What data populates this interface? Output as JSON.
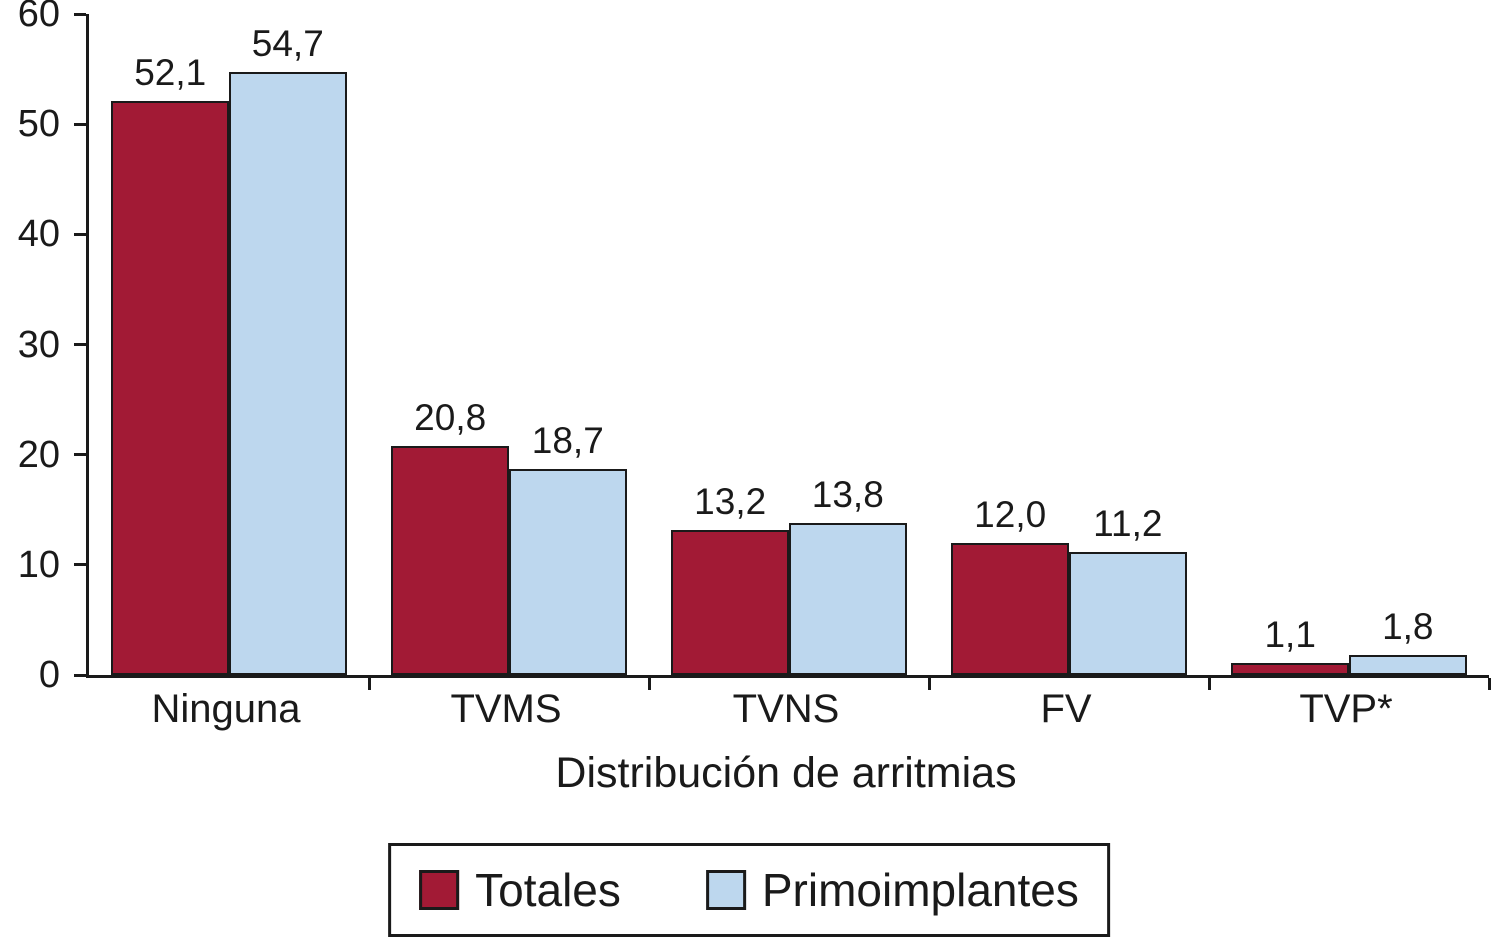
{
  "chart_data": {
    "type": "bar",
    "title": "",
    "xlabel": "Distribución de arritmias",
    "ylabel": "",
    "ylim": [
      0,
      60
    ],
    "yticks": [
      0,
      10,
      20,
      30,
      40,
      50,
      60
    ],
    "grid": false,
    "legend_position": "bottom-box",
    "categories": [
      "Ninguna",
      "TVMS",
      "TVNS",
      "FV",
      "TVP*"
    ],
    "series": [
      {
        "name": "Totales",
        "color": "#A21A35",
        "values": [
          52.1,
          20.8,
          13.2,
          12.0,
          1.1
        ],
        "value_labels": [
          "52,1",
          "20,8",
          "13,2",
          "12,0",
          "1,1"
        ]
      },
      {
        "name": "Primoimplantes",
        "color": "#BDD7EE",
        "values": [
          54.7,
          18.7,
          13.8,
          11.2,
          1.8
        ],
        "value_labels": [
          "54,7",
          "18,7",
          "13,8",
          "11,2",
          "1,8"
        ]
      }
    ],
    "axis_color": "#1A1A1A",
    "background": "#FFFFFF"
  }
}
